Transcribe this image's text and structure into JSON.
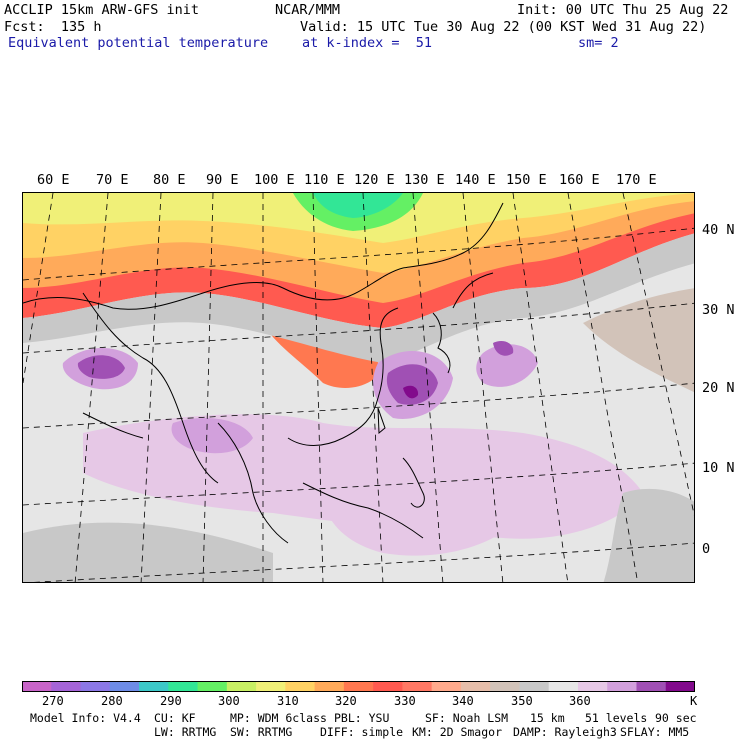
{
  "header": {
    "model": "ACCLIP 15km ARW-GFS init",
    "center": "NCAR/MMM",
    "init": "Init: 00 UTC Thu 25 Aug 22",
    "forecast": "Fcst:  135 h",
    "valid": "Valid: 15 UTC Tue 30 Aug 22 (00 KST Wed 31 Aug 22)",
    "field": "Equivalent potential temperature",
    "level": "at k-index =  51",
    "smoothing": "sm= 2"
  },
  "map": {
    "lon_labels": [
      "60 E",
      "70 E",
      "80 E",
      "90 E",
      "100 E",
      "110 E",
      "120 E",
      "130 E",
      "140 E",
      "150 E",
      "160 E",
      "170 E"
    ],
    "lat_labels": [
      "40 N",
      "30 N",
      "20 N",
      "10 N",
      "0"
    ]
  },
  "colorbar": {
    "colors": [
      "#c864c8",
      "#a564d7",
      "#8c78e6",
      "#6e8ce6",
      "#3cc8c8",
      "#32e696",
      "#64f064",
      "#c8f064",
      "#f0f078",
      "#ffd264",
      "#ffaa5a",
      "#ff7850",
      "#ff5a50",
      "#ff7864",
      "#ffaa8c",
      "#e6beaa",
      "#d2c3b9",
      "#c8c8c8",
      "#e6e6e6",
      "#e6c8e6",
      "#d2a0dc",
      "#a050b4",
      "#820a8c"
    ],
    "labels": [
      "270",
      "280",
      "290",
      "300",
      "310",
      "320",
      "330",
      "340",
      "350",
      "360"
    ],
    "unit": "K"
  },
  "footer": {
    "line1": [
      "Model Info: V4.4",
      "CU: KF",
      "MP: WDM 6class",
      "PBL: YSU",
      "SF: Noah LSM",
      "15 km",
      "51 levels",
      "90 sec"
    ],
    "line2": [
      "LW: RRTMG",
      "SW: RRTMG",
      "DIFF: simple",
      "KM: 2D Smagor",
      "DAMP: Rayleigh3",
      "SFLAY: MM5"
    ]
  }
}
